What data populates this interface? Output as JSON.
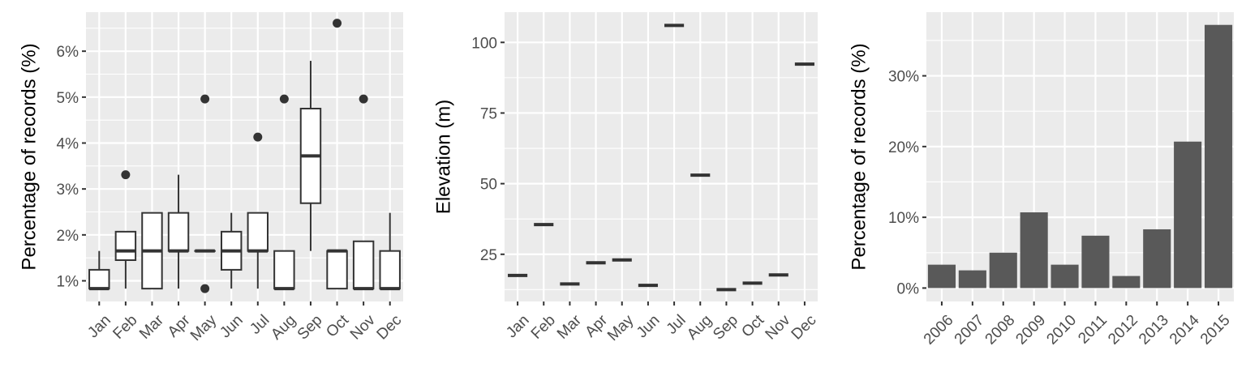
{
  "chart_data": [
    {
      "type": "box",
      "ylabel": "Percentage of records (%)",
      "xlabel": "",
      "ylim": [
        0.55,
        6.85
      ],
      "yticks": [
        1,
        2,
        3,
        4,
        5,
        6
      ],
      "ytick_labels": [
        "1%",
        "2%",
        "3%",
        "4%",
        "5%",
        "6%"
      ],
      "categories": [
        "Jan",
        "Feb",
        "Mar",
        "Apr",
        "May",
        "Jun",
        "Jul",
        "Aug",
        "Sep",
        "Oct",
        "Nov",
        "Dec"
      ],
      "boxes": [
        {
          "low": 0.83,
          "q1": 0.83,
          "median": 0.83,
          "q3": 1.24,
          "high": 1.65,
          "outliers": []
        },
        {
          "low": 0.83,
          "q1": 1.45,
          "median": 1.65,
          "q3": 2.07,
          "high": 2.07,
          "outliers": [
            3.31
          ]
        },
        {
          "low": 0.83,
          "q1": 0.83,
          "median": 1.65,
          "q3": 2.48,
          "high": 2.48,
          "outliers": []
        },
        {
          "low": 0.83,
          "q1": 1.65,
          "median": 1.65,
          "q3": 2.48,
          "high": 3.31,
          "outliers": []
        },
        {
          "low": 1.65,
          "q1": 1.65,
          "median": 1.65,
          "q3": 1.65,
          "high": 1.65,
          "outliers": [
            0.83,
            4.96
          ]
        },
        {
          "low": 0.83,
          "q1": 1.24,
          "median": 1.65,
          "q3": 2.07,
          "high": 2.48,
          "outliers": []
        },
        {
          "low": 0.83,
          "q1": 1.65,
          "median": 1.65,
          "q3": 2.48,
          "high": 2.48,
          "outliers": [
            4.13
          ]
        },
        {
          "low": 0.83,
          "q1": 0.83,
          "median": 0.83,
          "q3": 1.65,
          "high": 1.65,
          "outliers": [
            4.96
          ]
        },
        {
          "low": 1.65,
          "q1": 2.69,
          "median": 3.72,
          "q3": 4.75,
          "high": 5.79,
          "outliers": []
        },
        {
          "low": 0.83,
          "q1": 0.83,
          "median": 1.65,
          "q3": 1.65,
          "high": 1.65,
          "outliers": [
            6.61
          ]
        },
        {
          "low": 0.83,
          "q1": 0.83,
          "median": 0.83,
          "q3": 1.86,
          "high": 1.86,
          "outliers": [
            4.96
          ]
        },
        {
          "low": 0.83,
          "q1": 0.83,
          "median": 0.83,
          "q3": 1.65,
          "high": 2.48,
          "outliers": []
        }
      ],
      "grid": true
    },
    {
      "type": "crossbar",
      "ylabel": "Elevation (m)",
      "xlabel": "",
      "ylim": [
        8.3,
        110.7
      ],
      "yticks": [
        25,
        50,
        75,
        100
      ],
      "ytick_labels": [
        "25",
        "50",
        "75",
        "100"
      ],
      "categories": [
        "Jan",
        "Feb",
        "Mar",
        "Apr",
        "May",
        "Jun",
        "Jul",
        "Aug",
        "Sep",
        "Oct",
        "Nov",
        "Dec"
      ],
      "values": [
        17.5,
        35.5,
        14.5,
        22,
        23,
        14,
        106,
        53,
        12.5,
        14.8,
        17.7,
        92.3
      ],
      "grid": true
    },
    {
      "type": "bar",
      "ylabel": "Percentage of records (%)",
      "xlabel": "",
      "ylim": [
        -1.9,
        39
      ],
      "yticks": [
        0,
        10,
        20,
        30
      ],
      "ytick_labels": [
        "0%",
        "10%",
        "20%",
        "30%"
      ],
      "categories": [
        "2006",
        "2007",
        "2008",
        "2009",
        "2010",
        "2011",
        "2012",
        "2013",
        "2014",
        "2015"
      ],
      "values": [
        3.3,
        2.5,
        5.0,
        10.7,
        3.3,
        7.4,
        1.7,
        8.3,
        20.7,
        37.2
      ],
      "bar_color": "#595959",
      "grid": true
    }
  ],
  "colors": {
    "panel_bg": "#ebebeb",
    "grid": "#ffffff",
    "ink": "#333333",
    "tick_text": "#4d4d4d"
  }
}
